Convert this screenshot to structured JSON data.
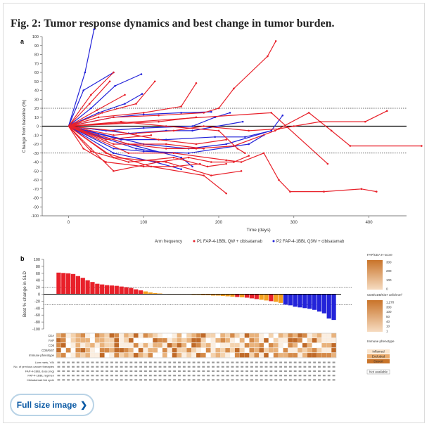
{
  "figure": {
    "title": "Fig. 2: Tumor response dynamics and best change in tumor burden.",
    "full_size_label": "Full size image",
    "chevron_icon": "chevron-right-icon"
  },
  "colors": {
    "p1": "#e8212a",
    "p2": "#2323d9",
    "orange": "#f5a01e",
    "brown_dark": "#c9742a",
    "brown_light": "#f6dcc1"
  },
  "chart_data": [
    {
      "panel": "a",
      "type": "line",
      "xlabel": "Time (days)",
      "ylabel": "Change from baseline (%)",
      "xlim": [
        -35,
        450
      ],
      "ylim": [
        -100,
        100
      ],
      "xticks": [
        0,
        100,
        200,
        300,
        400
      ],
      "yticks": [
        100,
        90,
        80,
        70,
        60,
        50,
        40,
        30,
        20,
        10,
        0,
        -10,
        -20,
        -30,
        -40,
        -50,
        -60,
        -70,
        -80,
        -90,
        -100
      ],
      "reference_lines": [
        20,
        -30
      ],
      "legend": {
        "title": "Arm frequency",
        "entries": [
          {
            "name": "P1 FAP-4-1BBL QW + cibisatamab",
            "color": "#e8212a"
          },
          {
            "name": "P2 FAP-4-1BBL Q3W + cibisatamab",
            "color": "#2323d9"
          }
        ]
      },
      "series": [
        {
          "arm": "P2",
          "points": [
            [
              0,
              0
            ],
            [
              22,
              60
            ],
            [
              34,
              108
            ]
          ]
        },
        {
          "arm": "P2",
          "points": [
            [
              0,
              0
            ],
            [
              20,
              40
            ],
            [
              60,
              60
            ]
          ]
        },
        {
          "arm": "P2",
          "points": [
            [
              0,
              0
            ],
            [
              30,
              20
            ],
            [
              62,
              45
            ],
            [
              97,
              58
            ]
          ]
        },
        {
          "arm": "P2",
          "points": [
            [
              0,
              0
            ],
            [
              40,
              15
            ],
            [
              75,
              25
            ],
            [
              98,
              36
            ]
          ]
        },
        {
          "arm": "P2",
          "points": [
            [
              0,
              0
            ],
            [
              60,
              10
            ],
            [
              100,
              13
            ],
            [
              150,
              15
            ],
            [
              190,
              16
            ]
          ]
        },
        {
          "arm": "P2",
          "points": [
            [
              0,
              0
            ],
            [
              50,
              -5
            ],
            [
              100,
              -2
            ],
            [
              165,
              0
            ],
            [
              195,
              10
            ],
            [
              215,
              15
            ]
          ]
        },
        {
          "arm": "P2",
          "points": [
            [
              0,
              0
            ],
            [
              80,
              -8
            ],
            [
              130,
              -5
            ],
            [
              165,
              -5
            ],
            [
              232,
              5
            ]
          ]
        },
        {
          "arm": "P2",
          "points": [
            [
              0,
              0
            ],
            [
              70,
              -15
            ],
            [
              130,
              -15
            ],
            [
              195,
              -12
            ],
            [
              235,
              -12
            ],
            [
              270,
              -5
            ]
          ]
        },
        {
          "arm": "P2",
          "points": [
            [
              0,
              0
            ],
            [
              100,
              -20
            ],
            [
              160,
              -25
            ],
            [
              210,
              -20
            ],
            [
              270,
              -5
            ],
            [
              285,
              12
            ]
          ]
        },
        {
          "arm": "P2",
          "points": [
            [
              0,
              0
            ],
            [
              40,
              -10
            ],
            [
              80,
              -20
            ],
            [
              150,
              -35
            ],
            [
              165,
              -45
            ]
          ]
        },
        {
          "arm": "P2",
          "points": [
            [
              0,
              0
            ],
            [
              60,
              -25
            ],
            [
              100,
              -28
            ],
            [
              160,
              -30
            ],
            [
              240,
              -20
            ],
            [
              260,
              -10
            ]
          ]
        },
        {
          "arm": "P2",
          "points": [
            [
              0,
              0
            ],
            [
              90,
              -25
            ],
            [
              130,
              -30
            ]
          ]
        },
        {
          "arm": "P2",
          "points": [
            [
              0,
              0
            ],
            [
              60,
              -30
            ],
            [
              115,
              -40
            ],
            [
              150,
              -48
            ]
          ]
        },
        {
          "arm": "P1",
          "points": [
            [
              0,
              0
            ],
            [
              30,
              35
            ],
            [
              60,
              60
            ]
          ]
        },
        {
          "arm": "P1",
          "points": [
            [
              0,
              0
            ],
            [
              28,
              25
            ],
            [
              55,
              50
            ]
          ]
        },
        {
          "arm": "P1",
          "points": [
            [
              0,
              0
            ],
            [
              38,
              18
            ],
            [
              75,
              35
            ]
          ]
        },
        {
          "arm": "P1",
          "points": [
            [
              0,
              0
            ],
            [
              45,
              15
            ],
            [
              90,
              25
            ],
            [
              115,
              50
            ]
          ]
        },
        {
          "arm": "P1",
          "points": [
            [
              0,
              0
            ],
            [
              40,
              10
            ],
            [
              100,
              15
            ],
            [
              150,
              22
            ],
            [
              170,
              48
            ]
          ]
        },
        {
          "arm": "P1",
          "points": [
            [
              0,
              0
            ],
            [
              60,
              10
            ],
            [
              120,
              12
            ],
            [
              180,
              15
            ],
            [
              200,
              20
            ],
            [
              220,
              42
            ],
            [
              265,
              78
            ],
            [
              276,
              95
            ]
          ]
        },
        {
          "arm": "P1",
          "points": [
            [
              0,
              0
            ],
            [
              70,
              5
            ],
            [
              130,
              0
            ],
            [
              200,
              -5
            ],
            [
              225,
              -25
            ],
            [
              235,
              -30
            ]
          ]
        },
        {
          "arm": "P1",
          "points": [
            [
              0,
              0
            ],
            [
              60,
              -10
            ],
            [
              90,
              -8
            ],
            [
              140,
              -5
            ],
            [
              180,
              0
            ],
            [
              240,
              -5
            ],
            [
              280,
              -3
            ],
            [
              300,
              0
            ],
            [
              335,
              5
            ],
            [
              395,
              5
            ],
            [
              424,
              17
            ]
          ]
        },
        {
          "arm": "P1",
          "points": [
            [
              0,
              0
            ],
            [
              80,
              -20
            ],
            [
              130,
              -25
            ],
            [
              170,
              -25
            ],
            [
              220,
              -22
            ],
            [
              275,
              -5
            ],
            [
              320,
              15
            ],
            [
              350,
              -5
            ],
            [
              375,
              -22
            ],
            [
              470,
              -22
            ]
          ]
        },
        {
          "arm": "P1",
          "points": [
            [
              0,
              0
            ],
            [
              80,
              -30
            ],
            [
              140,
              -30
            ],
            [
              210,
              -38
            ],
            [
              230,
              -40
            ],
            [
              260,
              -30
            ],
            [
              280,
              -60
            ],
            [
              295,
              -73
            ],
            [
              340,
              -73
            ],
            [
              390,
              -70
            ],
            [
              410,
              -73
            ]
          ]
        },
        {
          "arm": "P1",
          "points": [
            [
              0,
              0
            ],
            [
              60,
              -35
            ],
            [
              130,
              -40
            ],
            [
              190,
              -55
            ],
            [
              230,
              -50
            ]
          ]
        },
        {
          "arm": "P1",
          "points": [
            [
              0,
              0
            ],
            [
              50,
              -30
            ],
            [
              110,
              -45
            ],
            [
              180,
              -55
            ],
            [
              210,
              -75
            ]
          ]
        },
        {
          "arm": "P1",
          "points": [
            [
              0,
              0
            ],
            [
              30,
              -25
            ],
            [
              60,
              -50
            ],
            [
              120,
              -40
            ],
            [
              160,
              -35
            ],
            [
              190,
              -40
            ],
            [
              220,
              -40
            ],
            [
              240,
              -33
            ]
          ]
        },
        {
          "arm": "P1",
          "points": [
            [
              0,
              0
            ],
            [
              30,
              -28
            ],
            [
              80,
              -40
            ],
            [
              140,
              -35
            ],
            [
              185,
              -45
            ],
            [
              210,
              -42
            ]
          ]
        },
        {
          "arm": "P1",
          "points": [
            [
              0,
              0
            ],
            [
              20,
              -25
            ],
            [
              50,
              -40
            ],
            [
              100,
              -45
            ],
            [
              140,
              -45
            ],
            [
              175,
              -42
            ]
          ]
        },
        {
          "arm": "P1",
          "points": [
            [
              0,
              0
            ],
            [
              60,
              -5
            ],
            [
              120,
              -15
            ],
            [
              170,
              -20
            ],
            [
              210,
              -15
            ]
          ]
        },
        {
          "arm": "P1",
          "points": [
            [
              0,
              0
            ],
            [
              270,
              15
            ],
            [
              345,
              -42
            ]
          ]
        },
        {
          "arm": "P1",
          "points": [
            [
              0,
              0
            ],
            [
              120,
              5
            ],
            [
              170,
              10
            ]
          ]
        },
        {
          "arm": "P1",
          "points": [
            [
              0,
              0
            ],
            [
              60,
              -20
            ],
            [
              130,
              -20
            ],
            [
              180,
              -25
            ]
          ]
        },
        {
          "arm": "P1",
          "points": [
            [
              0,
              0
            ],
            [
              50,
              -15
            ],
            [
              110,
              -10
            ]
          ]
        }
      ]
    },
    {
      "panel": "b",
      "type": "bar",
      "ylabel": "Best % change in SLD",
      "ylim": [
        -100,
        100
      ],
      "yticks": [
        100,
        80,
        60,
        40,
        20,
        0,
        -20,
        -40,
        -60,
        -80,
        -100
      ],
      "reference_lines": [
        20,
        -30
      ],
      "values": [
        62,
        61,
        60,
        58,
        52,
        47,
        40,
        35,
        30,
        28,
        26,
        25,
        24,
        22,
        20,
        18,
        14,
        11,
        8,
        5,
        3,
        2,
        1,
        0,
        0,
        0,
        -1,
        -1,
        -2,
        -2,
        -3,
        -3,
        -4,
        -4,
        -5,
        -6,
        -7,
        -8,
        -9,
        -10,
        -12,
        -14,
        -16,
        -18,
        -20,
        -22,
        -25,
        -30,
        -32,
        -36,
        -38,
        -40,
        -42,
        -45,
        -50,
        -55,
        -70,
        -74
      ],
      "colors": [
        "r",
        "r",
        "r",
        "r",
        "r",
        "r",
        "r",
        "r",
        "r",
        "r",
        "r",
        "r",
        "r",
        "r",
        "r",
        "r",
        "r",
        "r",
        "o",
        "o",
        "o",
        "o",
        "r",
        "o",
        "o",
        "o",
        "o",
        "o",
        "o",
        "o",
        "o",
        "o",
        "o",
        "o",
        "o",
        "o",
        "o",
        "r",
        "o",
        "r",
        "r",
        "r",
        "o",
        "o",
        "r",
        "o",
        "o",
        "b",
        "b",
        "b",
        "b",
        "b",
        "b",
        "b",
        "b",
        "b",
        "b",
        "b"
      ],
      "right_legends": [
        {
          "title": "FAP/CEA H-score",
          "ticks": [
            "300",
            "200",
            "100",
            "0"
          ]
        },
        {
          "title": "CD8/CD8/Ki67 cells/mm²",
          "ticks": [
            "1,270",
            "300",
            "100",
            "50",
            "40",
            "10",
            "1"
          ]
        }
      ],
      "immune_legend": {
        "title": "Immune phenotype",
        "entries": [
          "Inflamed",
          "Excluded",
          "Desert"
        ],
        "not_available": "Not available"
      },
      "heatmap_rows": [
        "CEA",
        "FAP",
        "CD8",
        "CD8/Ki67",
        "Immune phenotype"
      ],
      "annotation_rows": [
        "Liver mets, Y/N",
        "No. of previous cancer therapies",
        "FAP-4-1BBL dose (mg)",
        "FAP-4-1BBL regimen",
        "Cibisatamab flat cycle"
      ]
    }
  ]
}
